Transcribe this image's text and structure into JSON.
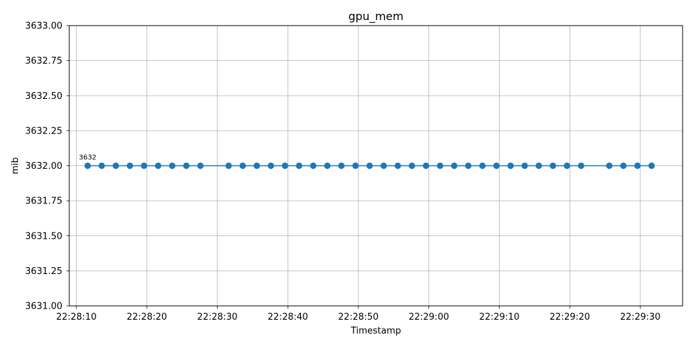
{
  "chart_data": {
    "type": "line",
    "title": "gpu_mem",
    "xlabel": "Timestamp",
    "ylabel": "mib",
    "ylim": [
      3631.0,
      3633.0
    ],
    "x_start": "22:28:10",
    "xlim": [
      "22:28:09",
      "22:29:36"
    ],
    "x_ticks": [
      "22:28:10",
      "22:28:20",
      "22:28:30",
      "22:28:40",
      "22:28:50",
      "22:29:00",
      "22:29:10",
      "22:29:20",
      "22:29:30"
    ],
    "y_ticks": [
      "3631.00",
      "3631.25",
      "3631.50",
      "3631.75",
      "3632.00",
      "3632.25",
      "3632.50",
      "3632.75",
      "3633.00"
    ],
    "grid": true,
    "series_color": "#1f77b4",
    "x": [
      "22:28:11.6",
      "22:28:13.6",
      "22:28:15.6",
      "22:28:17.6",
      "22:28:19.6",
      "22:28:21.6",
      "22:28:23.6",
      "22:28:25.6",
      "22:28:27.6",
      "22:28:31.6",
      "22:28:33.6",
      "22:28:35.6",
      "22:28:37.6",
      "22:28:39.6",
      "22:28:41.6",
      "22:28:43.6",
      "22:28:45.6",
      "22:28:47.6",
      "22:28:49.6",
      "22:28:51.6",
      "22:28:53.6",
      "22:28:55.6",
      "22:28:57.6",
      "22:28:59.6",
      "22:29:01.6",
      "22:29:03.6",
      "22:29:05.6",
      "22:29:07.6",
      "22:29:09.6",
      "22:29:11.6",
      "22:29:13.6",
      "22:29:15.6",
      "22:29:17.6",
      "22:29:19.6",
      "22:29:21.6",
      "22:29:25.6",
      "22:29:27.6",
      "22:29:29.6",
      "22:29:31.6"
    ],
    "values": [
      3632,
      3632,
      3632,
      3632,
      3632,
      3632,
      3632,
      3632,
      3632,
      3632,
      3632,
      3632,
      3632,
      3632,
      3632,
      3632,
      3632,
      3632,
      3632,
      3632,
      3632,
      3632,
      3632,
      3632,
      3632,
      3632,
      3632,
      3632,
      3632,
      3632,
      3632,
      3632,
      3632,
      3632,
      3632,
      3632,
      3632,
      3632,
      3632
    ],
    "annotations": [
      {
        "x": "22:28:11.6",
        "y": 3632,
        "text": "3632"
      }
    ]
  }
}
